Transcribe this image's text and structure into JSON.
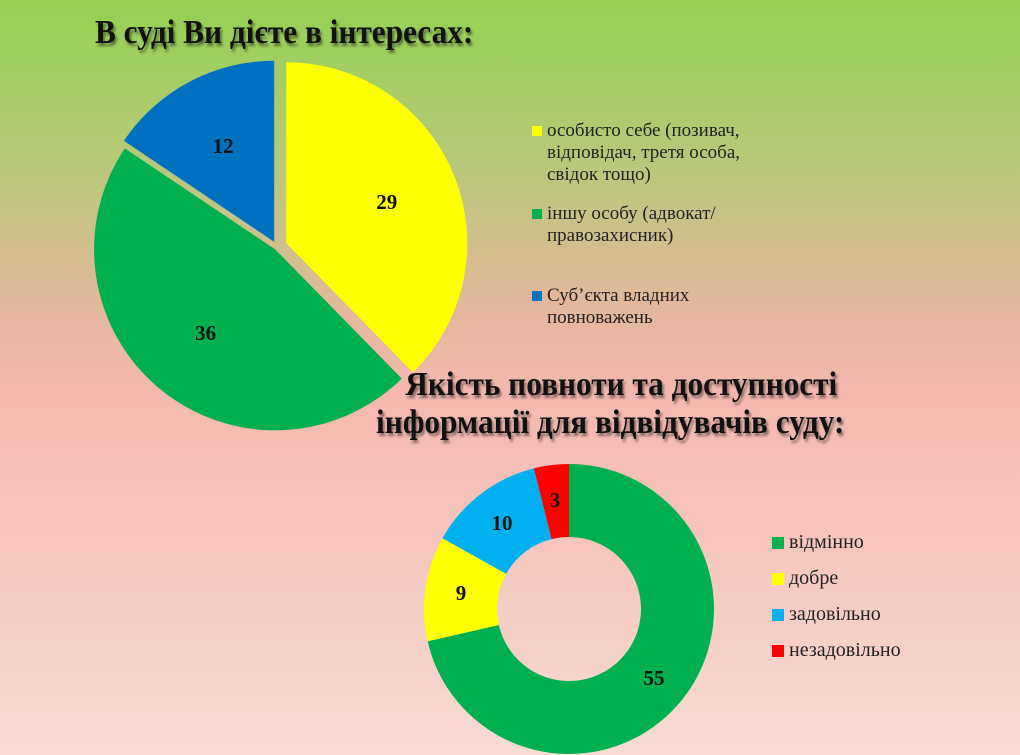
{
  "chart_data": [
    {
      "type": "pie",
      "title": "В суді Ви дієте в інтересах:",
      "categories": [
        "особисто себе (позивач, відповідач, третя особа, свідок тощо)",
        "іншу особу (адвокат/правозахисник)",
        "Суб’єкта владних повноважень"
      ],
      "values": [
        29,
        36,
        12
      ],
      "colors": [
        "#ffff00",
        "#00b050",
        "#0070c0"
      ],
      "legend": "right"
    },
    {
      "type": "donut",
      "title": "Якість повноти та доступності інформації для відвідувачів  суду:",
      "categories": [
        "відмінно",
        "добре",
        "задовільно",
        "незадовільно"
      ],
      "values": [
        55,
        9,
        10,
        3
      ],
      "colors": [
        "#00b050",
        "#ffff00",
        "#00b0f0",
        "#ff0000"
      ],
      "legend": "right"
    }
  ]
}
